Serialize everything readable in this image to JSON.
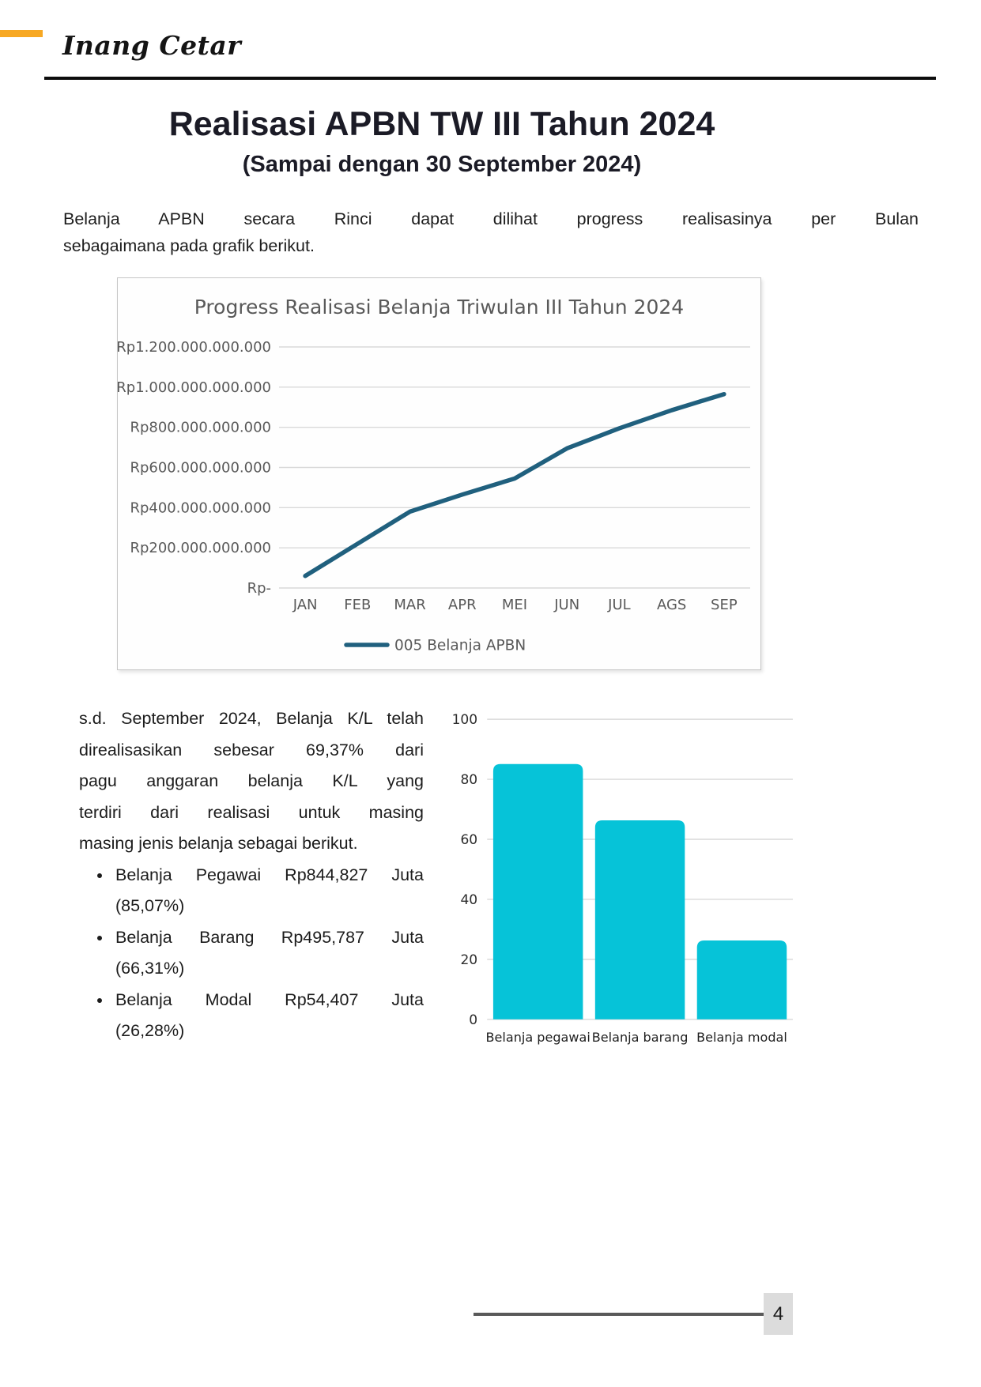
{
  "header": {
    "brand": "Inang Cetar",
    "accent_color": "#F7A823"
  },
  "title": {
    "main": "Realisasi APBN TW III Tahun 2024",
    "subtitle": "(Sampai dengan 30 September 2024)"
  },
  "intro": {
    "text": "Belanja APBN secara Rinci dapat dilihat progress realisasinya per Bulan sebagaimana pada grafik berikut.",
    "lines": [
      "Belanja APBN secara Rinci dapat dilihat progress realisasinya per Bulan",
      "sebagaimana pada grafik berikut."
    ]
  },
  "body": {
    "paragraph": "s.d. September 2024, Belanja K/L telah direalisasikan sebesar 69,37% dari pagu anggaran belanja K/L yang terdiri dari realisasi untuk masing masing jenis belanja sebagai berikut.",
    "paragraph_lines": [
      "s.d. September 2024, Belanja K/L telah",
      "direalisasikan sebesar 69,37% dari",
      "pagu anggaran belanja K/L yang",
      "terdiri dari realisasi untuk masing",
      "masing jenis belanja sebagai berikut."
    ],
    "bullets": [
      {
        "line1": "Belanja Pegawai Rp844,827 Juta",
        "line2": "(85,07%)"
      },
      {
        "line1": "Belanja Barang Rp495,787 Juta",
        "line2": "(66,31%)"
      },
      {
        "line1": "Belanja Modal Rp54,407 Juta",
        "line2": "(26,28%)"
      }
    ]
  },
  "chart_data": [
    {
      "type": "line",
      "title": "Progress Realisasi Belanja Triwulan III Tahun 2024",
      "categories": [
        "JAN",
        "FEB",
        "MAR",
        "APR",
        "MEI",
        "JUN",
        "JUL",
        "AGS",
        "SEP"
      ],
      "series": [
        {
          "name": "005 Belanja APBN",
          "values": [
            60,
            220,
            380,
            465,
            545,
            695,
            795,
            885,
            965
          ]
        }
      ],
      "values_unit": "Rp miliar (estimated from plot)",
      "ylim": [
        0,
        1200
      ],
      "y_ticks": [
        {
          "value": 1200,
          "label": "Rp1.200.000.000.000"
        },
        {
          "value": 1000,
          "label": "Rp1.000.000.000.000"
        },
        {
          "value": 800,
          "label": "Rp800.000.000.000"
        },
        {
          "value": 600,
          "label": "Rp600.000.000.000"
        },
        {
          "value": 400,
          "label": "Rp400.000.000.000"
        },
        {
          "value": 200,
          "label": "Rp200.000.000.000"
        },
        {
          "value": 0,
          "label": "Rp-"
        }
      ],
      "grid": true,
      "legend_position": "bottom",
      "line_color": "#20607E",
      "text_color": "#595959",
      "grid_color": "#d9d9d9"
    },
    {
      "type": "bar",
      "categories": [
        "Belanja pegawai",
        "Belanja barang",
        "Belanja modal"
      ],
      "values": [
        85.07,
        66.31,
        26.28
      ],
      "ylim": [
        0,
        100
      ],
      "y_ticks": [
        0,
        20,
        40,
        60,
        80,
        100
      ],
      "grid": true,
      "bar_color": "#06C3D8",
      "text_color": "#2e2e2e",
      "grid_color": "#d9d9d9"
    }
  ],
  "footer": {
    "page_number": "4"
  }
}
